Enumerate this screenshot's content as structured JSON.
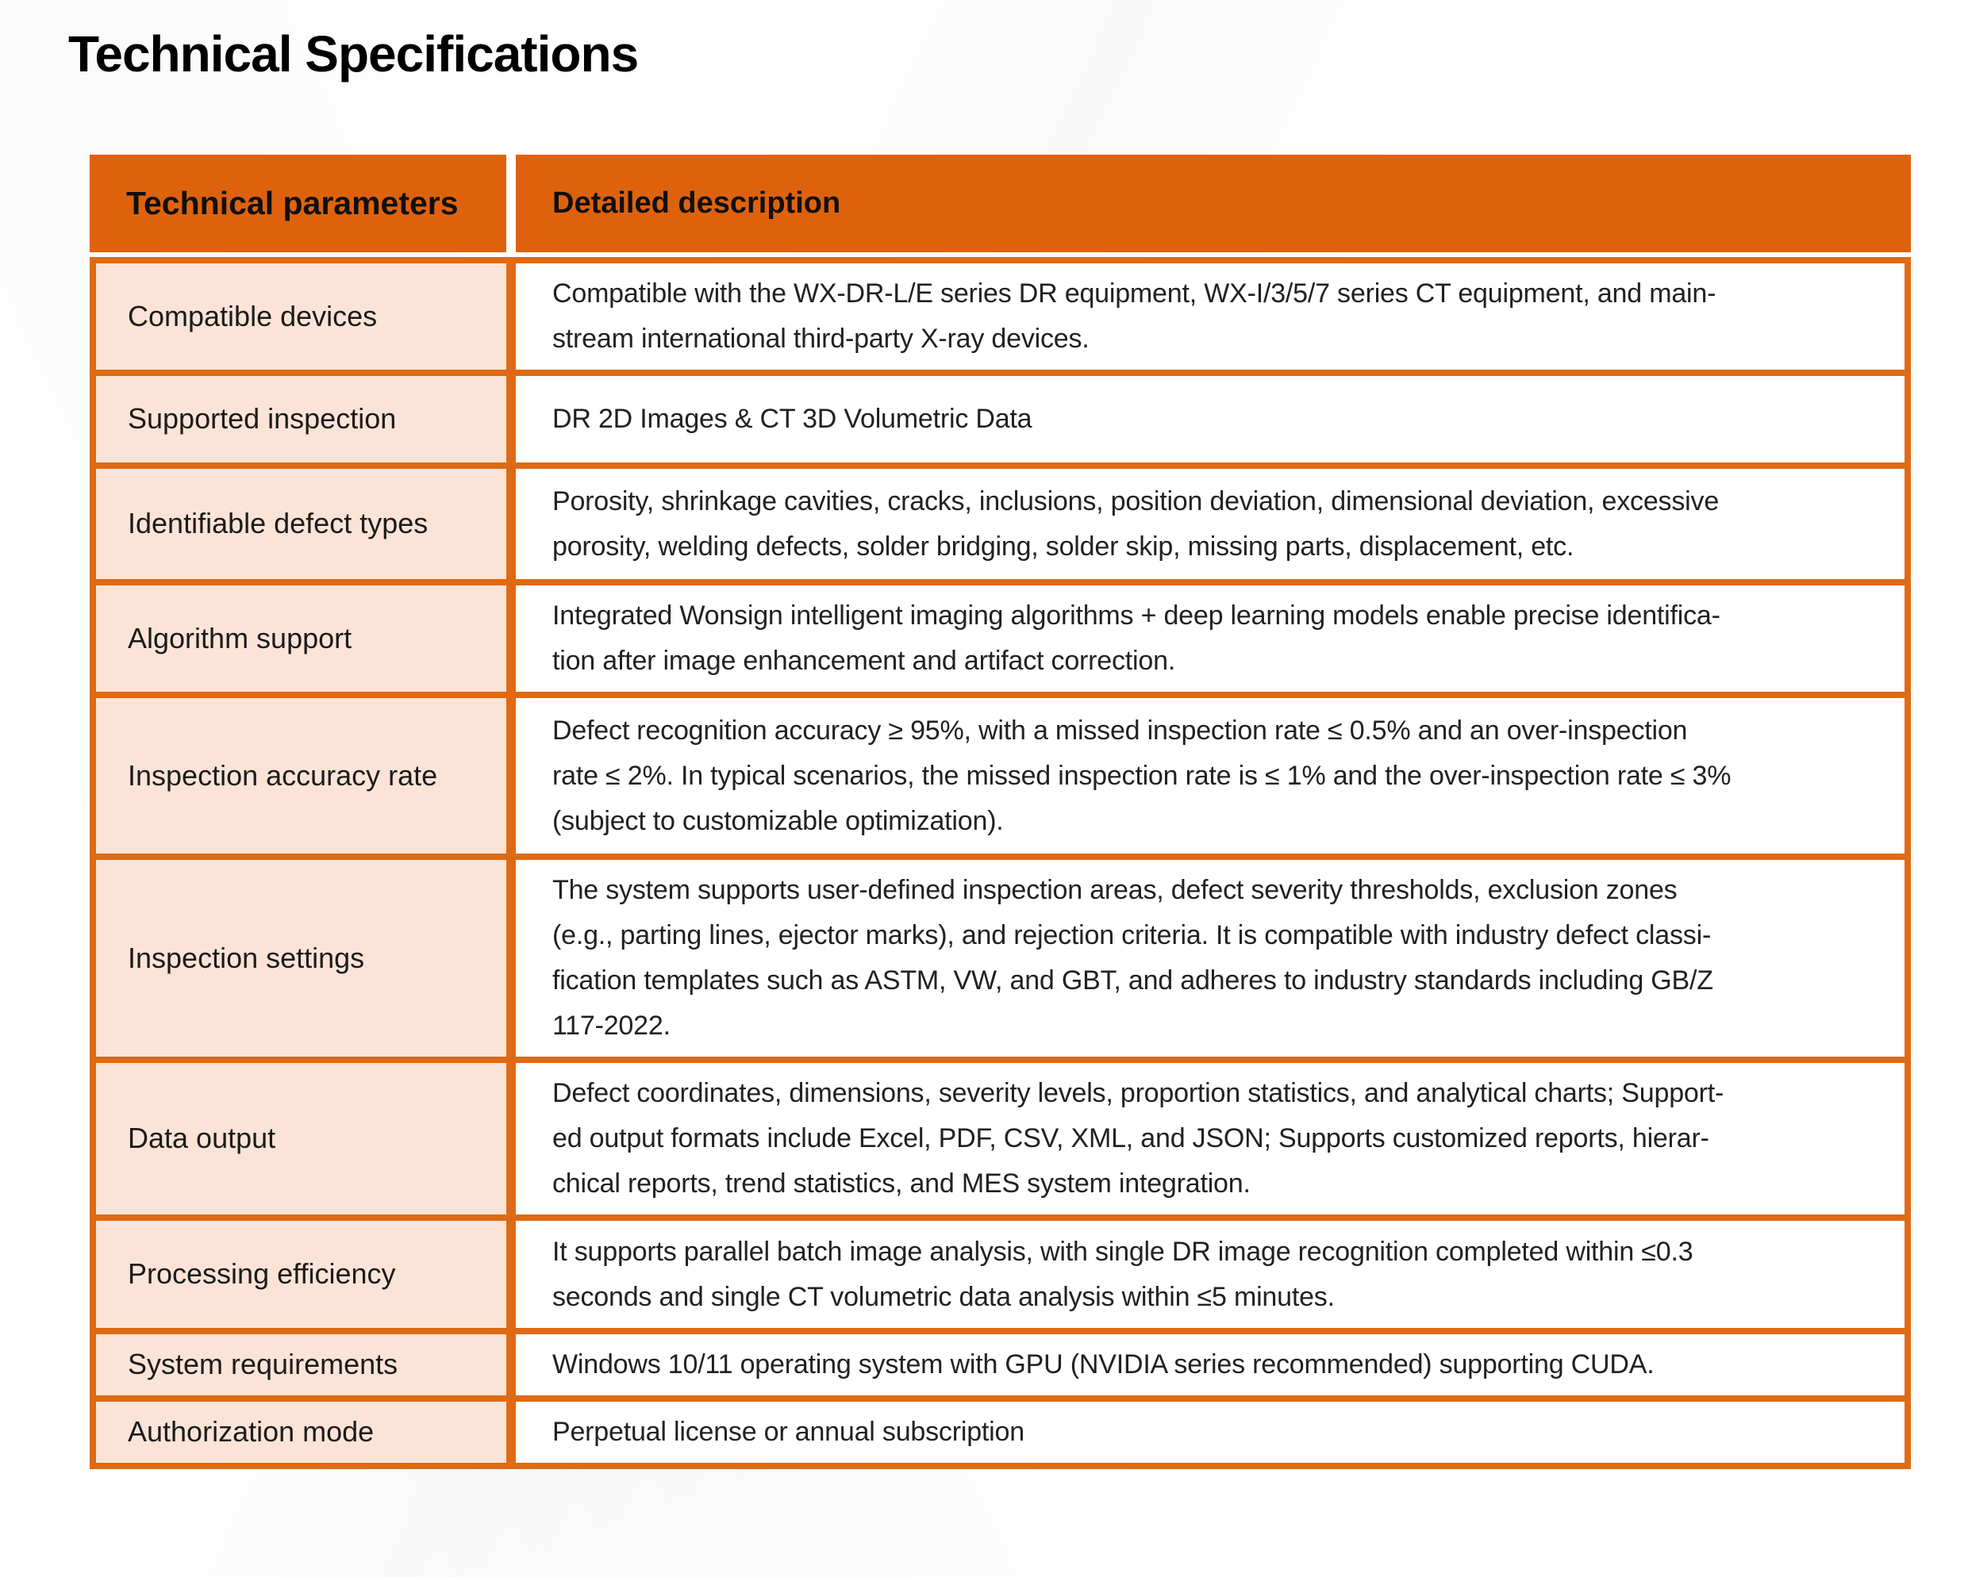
{
  "page": {
    "title": "Technical Specifications"
  },
  "colors": {
    "header_orange": "#DE620D",
    "border_orange": "#DF6A14",
    "param_cell_peach": "#FBE4D7",
    "description_bg": "#FFFFFF",
    "text_black": "#1B1B1B"
  },
  "table": {
    "columns": [
      "Technical parameters",
      "Detailed description"
    ],
    "rows": [
      {
        "param": "Compatible devices",
        "description": "Compatible with the WX-DR-L/E series DR equipment, WX-I/3/5/7 series CT equipment, and main-\nstream international third-party X-ray devices."
      },
      {
        "param": "Supported inspection",
        "description": "DR 2D Images & CT 3D Volumetric Data"
      },
      {
        "param": "Identifiable defect types",
        "description": "Porosity, shrinkage cavities, cracks, inclusions, position deviation, dimensional deviation, excessive\nporosity, welding defects, solder bridging, solder skip, missing parts, displacement, etc."
      },
      {
        "param": "Algorithm support",
        "description": "Integrated Wonsign intelligent imaging algorithms + deep learning models enable precise identifica-\ntion after image enhancement and artifact correction."
      },
      {
        "param": "Inspection accuracy rate",
        "description": "Defect recognition accuracy ≥ 95%, with a missed inspection rate ≤ 0.5% and an over-inspection\nrate ≤ 2%. In typical scenarios, the missed inspection rate is ≤ 1% and the over-inspection rate ≤ 3%\n(subject to customizable optimization)."
      },
      {
        "param": "Inspection settings",
        "description": "The system supports user-defined inspection areas, defect severity thresholds, exclusion zones\n(e.g., parting lines, ejector marks), and rejection criteria. It is compatible with industry defect classi-\nfication templates such as ASTM, VW, and GBT, and adheres to industry standards including GB/Z\n117-2022."
      },
      {
        "param": "Data output",
        "description": "Defect coordinates, dimensions, severity levels, proportion statistics, and analytical charts; Support-\ned output formats include Excel, PDF, CSV, XML, and JSON; Supports customized reports, hierar-\nchical reports, trend statistics, and MES system integration."
      },
      {
        "param": "Processing efficiency",
        "description": "It supports parallel batch image analysis, with single DR image recognition completed within ≤0.3\nseconds and single CT volumetric data analysis within ≤5 minutes."
      },
      {
        "param": "System requirements",
        "description": "Windows 10/11 operating system with GPU (NVIDIA series recommended) supporting CUDA."
      },
      {
        "param": "Authorization mode",
        "description": "Perpetual license or annual subscription"
      }
    ]
  }
}
